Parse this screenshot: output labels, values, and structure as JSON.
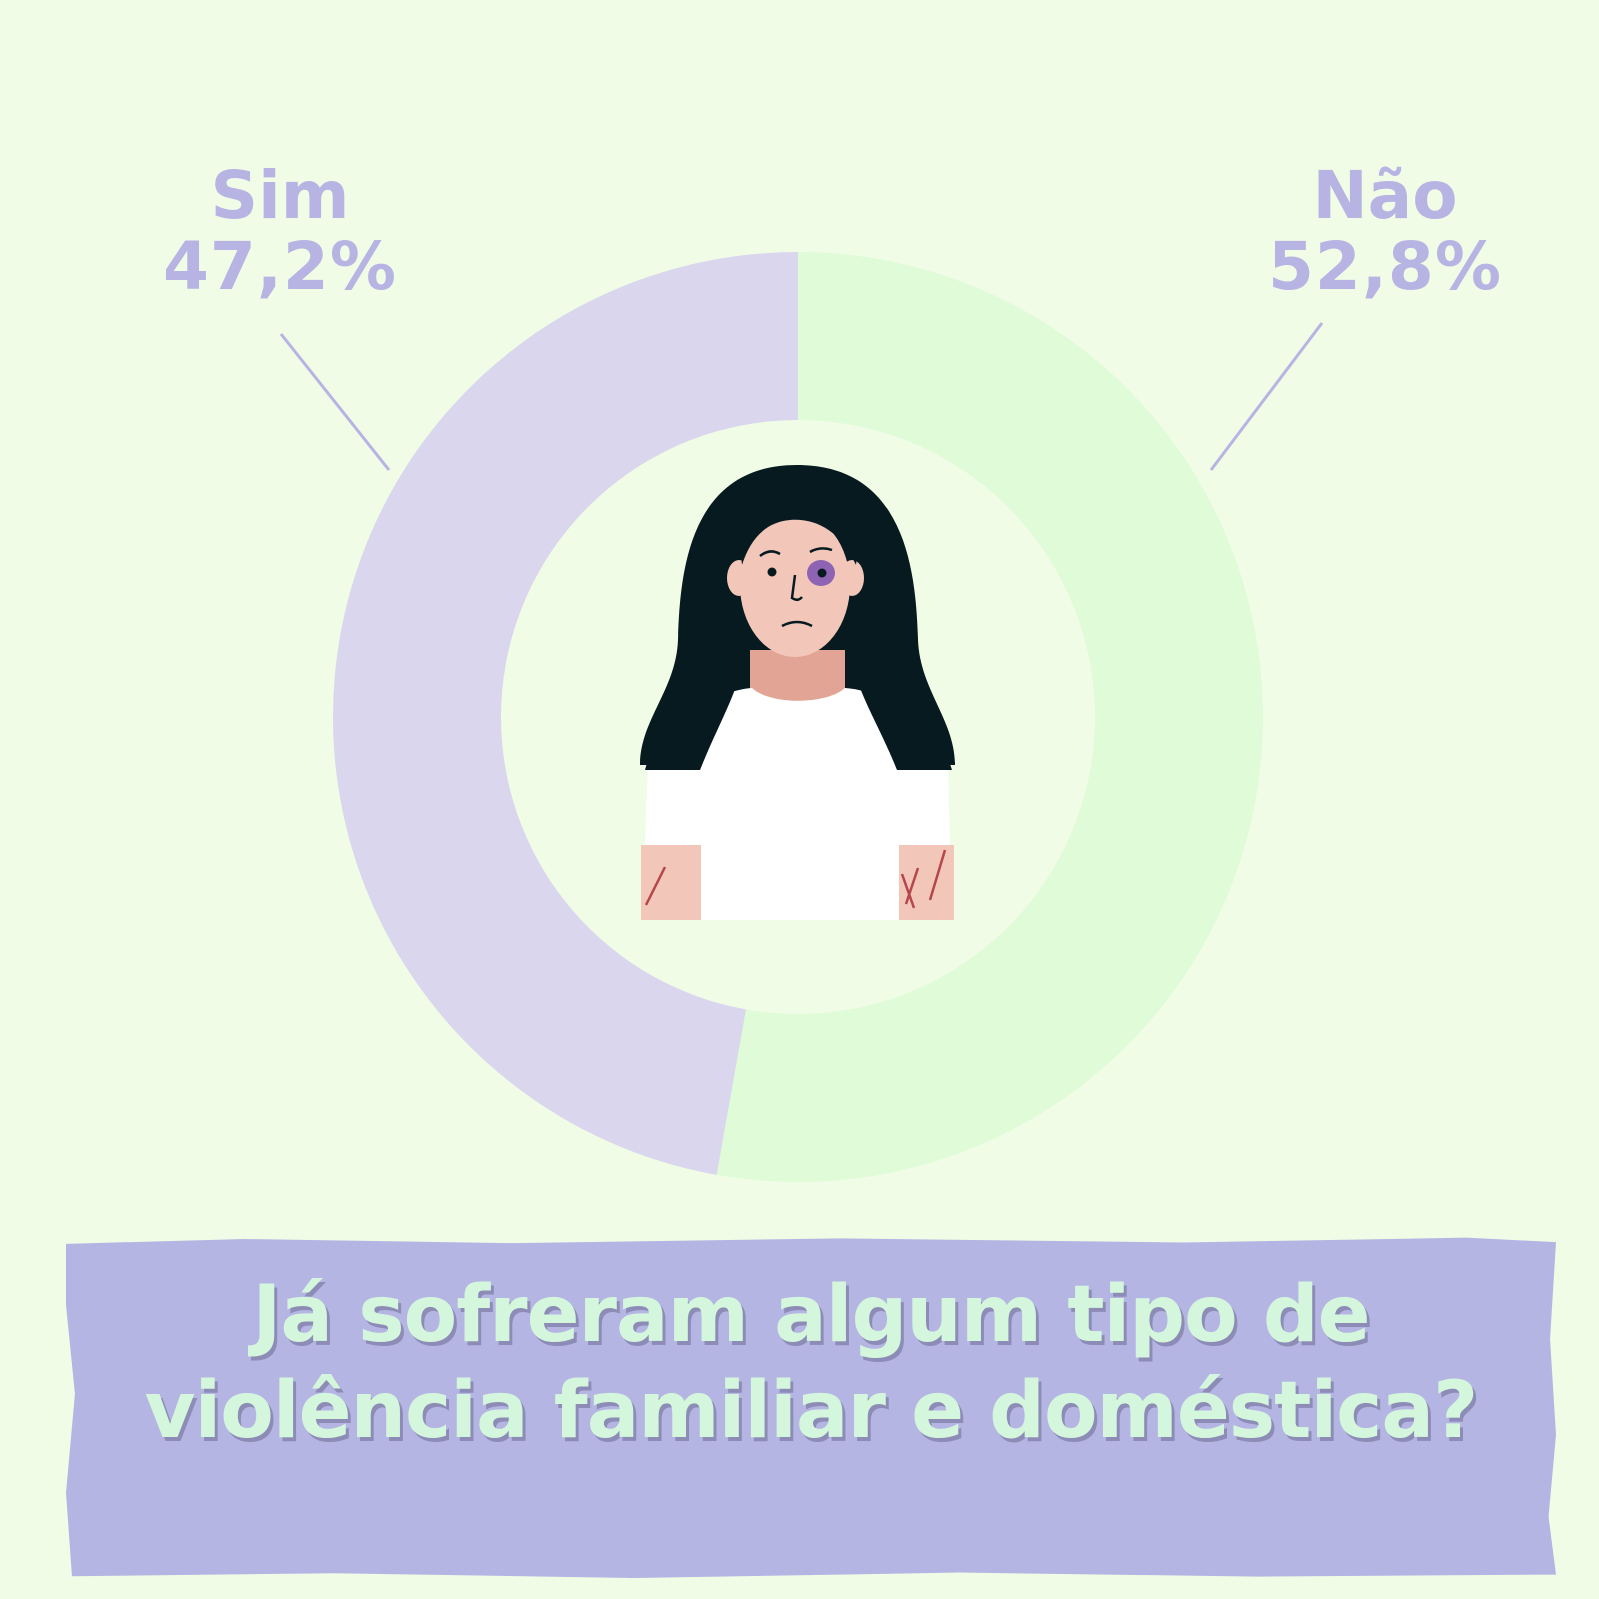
{
  "chart_data": {
    "type": "pie",
    "style": "donut",
    "categories": [
      "Sim",
      "Não"
    ],
    "values": [
      47.2,
      52.8
    ],
    "value_labels": [
      "47,2%",
      "52,8%"
    ],
    "colors": [
      "#dad6ee",
      "#dffbd8"
    ],
    "title": "Já sofreram algum tipo de violência familiar e doméstica?",
    "legend": "none",
    "label_color": "#b7b4e4"
  },
  "labels": {
    "sim": {
      "name": "Sim",
      "pct": "47,2%"
    },
    "nao": {
      "name": "Não",
      "pct": "52,8%"
    }
  },
  "question": {
    "line1": "Já sofreram algum tipo de",
    "line2": "violência  familiar e doméstica?"
  },
  "illustration": {
    "icon": "sad-woman-with-bruises-icon"
  },
  "colors": {
    "background": "#f0fce6",
    "banner": "#b5b5e3",
    "question_text": "#d4f6dc",
    "leader_line": "#b7b4e4"
  }
}
